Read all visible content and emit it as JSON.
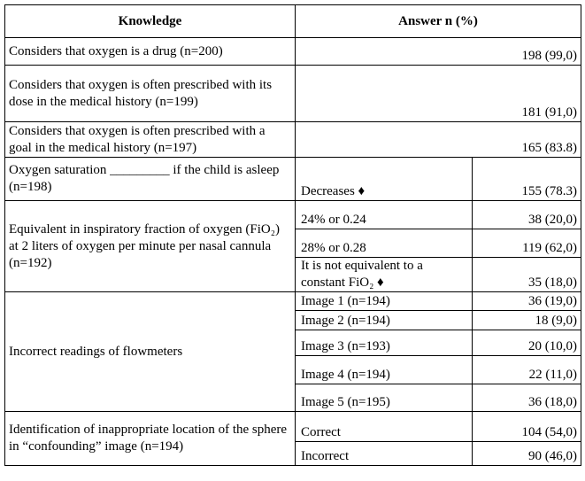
{
  "header": {
    "knowledge": "Knowledge",
    "answer": "Answer n (%)"
  },
  "rows": [
    {
      "knowledge": "Considers that oxygen is a drug (n=200)",
      "answers": [
        {
          "value": "198 (99,0)"
        }
      ]
    },
    {
      "knowledge": "Considers that oxygen is often prescribed with its dose in the medical history (n=199)",
      "answers": [
        {
          "value": "181 (91,0)"
        }
      ]
    },
    {
      "knowledge": "Considers that oxygen is often prescribed with a goal in the medical history (n=197)",
      "answers": [
        {
          "value": "165 (83.8)"
        }
      ]
    },
    {
      "knowledge": "Oxygen saturation _________ if the child is asleep (n=198)",
      "answers": [
        {
          "option": "Decreases ♦",
          "value": "155 (78.3)"
        }
      ]
    },
    {
      "knowledge": "Equivalent in inspiratory fraction of oxygen (FiO₂) at 2 liters of oxygen per minute per nasal cannula (n=192)",
      "answers": [
        {
          "option": "24% or 0.24",
          "value": "38 (20,0)"
        },
        {
          "option": "28% or 0.28",
          "value": "119 (62,0)"
        },
        {
          "option": "It is not equivalent to a constant FiO₂ ♦",
          "value": "35 (18,0)"
        }
      ]
    },
    {
      "knowledge": "Incorrect readings of flowmeters",
      "answers": [
        {
          "option": "Image 1 (n=194)",
          "value": "36 (19,0)"
        },
        {
          "option": "Image 2 (n=194)",
          "value": "18 (9,0)"
        },
        {
          "option": "Image 3 (n=193)",
          "value": "20 (10,0)"
        },
        {
          "option": "Image 4 (n=194)",
          "value": "22 (11,0)"
        },
        {
          "option": "Image 5 (n=195)",
          "value": "36 (18,0)"
        }
      ]
    },
    {
      "knowledge": "Identification of inappropriate location of the sphere in “confounding” image (n=194)",
      "answers": [
        {
          "option": "Correct",
          "value": "104 (54,0)"
        },
        {
          "option": "Incorrect",
          "value": "90 (46,0)"
        }
      ]
    }
  ]
}
